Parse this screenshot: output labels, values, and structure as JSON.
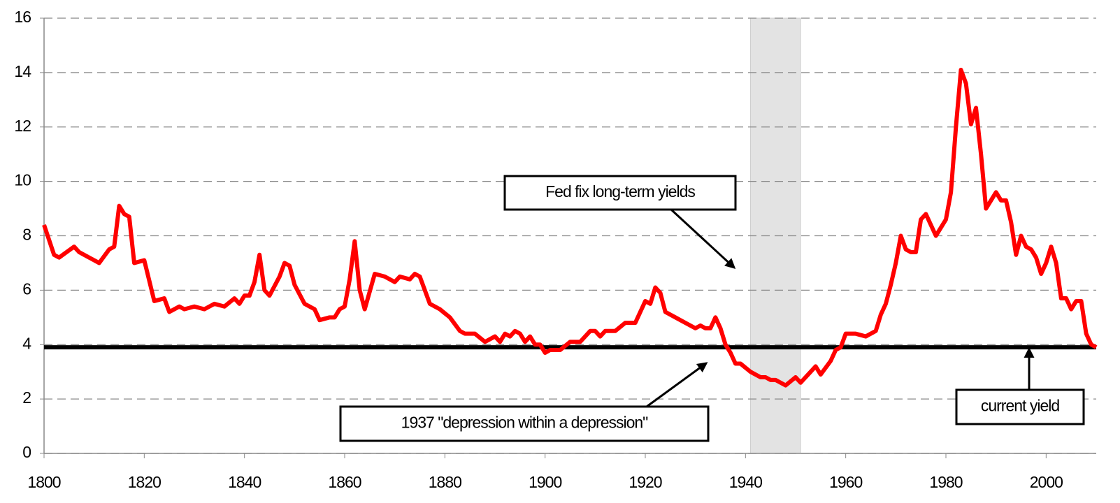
{
  "chart_data": {
    "type": "line",
    "x": [
      1800,
      1802,
      1803,
      1806,
      1807,
      1811,
      1813,
      1814,
      1815,
      1816,
      1817,
      1818,
      1820,
      1822,
      1824,
      1825,
      1827,
      1828,
      1830,
      1832,
      1834,
      1836,
      1838,
      1839,
      1840,
      1841,
      1842,
      1843,
      1844,
      1845,
      1847,
      1848,
      1849,
      1850,
      1852,
      1854,
      1855,
      1857,
      1858,
      1859,
      1860,
      1861,
      1862,
      1863,
      1864,
      1866,
      1868,
      1870,
      1871,
      1873,
      1874,
      1875,
      1877,
      1879,
      1881,
      1883,
      1884,
      1886,
      1888,
      1890,
      1891,
      1892,
      1893,
      1894,
      1895,
      1896,
      1897,
      1898,
      1899,
      1900,
      1901,
      1903,
      1905,
      1907,
      1909,
      1910,
      1911,
      1912,
      1914,
      1916,
      1918,
      1920,
      1921,
      1922,
      1923,
      1924,
      1926,
      1928,
      1930,
      1931,
      1932,
      1933,
      1934,
      1935,
      1936,
      1937,
      1938,
      1939,
      1941,
      1943,
      1944,
      1945,
      1946,
      1948,
      1950,
      1951,
      1953,
      1954,
      1955,
      1957,
      1958,
      1959,
      1960,
      1962,
      1964,
      1966,
      1967,
      1968,
      1969,
      1970,
      1971,
      1972,
      1973,
      1974,
      1975,
      1976,
      1978,
      1980,
      1981,
      1982,
      1983,
      1984,
      1985,
      1986,
      1987,
      1988,
      1989,
      1990,
      1991,
      1992,
      1993,
      1994,
      1995,
      1996,
      1997,
      1998,
      1999,
      2000,
      2001,
      2002,
      2003,
      2004,
      2005,
      2006,
      2007,
      2008,
      2009,
      2010
    ],
    "series": [
      {
        "color": "#ff0000",
        "values": [
          8.4,
          7.3,
          7.2,
          7.6,
          7.4,
          7.0,
          7.5,
          7.6,
          9.1,
          8.8,
          8.7,
          7.0,
          7.1,
          5.6,
          5.7,
          5.2,
          5.4,
          5.3,
          5.4,
          5.3,
          5.5,
          5.4,
          5.7,
          5.5,
          5.8,
          5.8,
          6.3,
          7.3,
          6.0,
          5.8,
          6.5,
          7.0,
          6.9,
          6.2,
          5.5,
          5.3,
          4.9,
          5.0,
          5.0,
          5.3,
          5.4,
          6.4,
          7.8,
          6.0,
          5.3,
          6.6,
          6.5,
          6.3,
          6.5,
          6.4,
          6.6,
          6.5,
          5.5,
          5.3,
          5.0,
          4.5,
          4.4,
          4.4,
          4.1,
          4.3,
          4.1,
          4.4,
          4.3,
          4.5,
          4.4,
          4.1,
          4.3,
          4.0,
          4.0,
          3.7,
          3.8,
          3.8,
          4.1,
          4.1,
          4.5,
          4.5,
          4.3,
          4.5,
          4.5,
          4.8,
          4.8,
          5.6,
          5.5,
          6.1,
          5.9,
          5.2,
          5.0,
          4.8,
          4.6,
          4.7,
          4.6,
          4.6,
          5.0,
          4.6,
          4.0,
          3.7,
          3.3,
          3.3,
          3.0,
          2.8,
          2.8,
          2.7,
          2.7,
          2.5,
          2.8,
          2.6,
          3.0,
          3.2,
          2.9,
          3.4,
          3.8,
          3.9,
          4.4,
          4.4,
          4.3,
          4.5,
          5.1,
          5.5,
          6.2,
          7.0,
          8.0,
          7.5,
          7.4,
          7.4,
          8.6,
          8.8,
          8.0,
          8.6,
          9.6,
          12.0,
          14.1,
          13.6,
          12.1,
          12.7,
          11.0,
          9.0,
          9.3,
          9.6,
          9.3,
          9.3,
          8.5,
          7.3,
          8.0,
          7.6,
          7.5,
          7.2,
          6.6,
          7.0,
          7.6,
          7.0,
          5.7,
          5.7,
          5.3,
          5.6,
          5.6,
          4.4,
          4.0,
          3.9
        ]
      }
    ],
    "reference_line": {
      "value": 3.9,
      "color": "#000000"
    },
    "shaded_span": [
      1941,
      1951
    ],
    "xlim": [
      1800,
      2010
    ],
    "xticks": [
      1800,
      1820,
      1840,
      1860,
      1880,
      1900,
      1920,
      1940,
      1960,
      1980,
      2000
    ],
    "ylim": [
      0,
      16
    ],
    "yticks": [
      0,
      2,
      4,
      6,
      8,
      10,
      12,
      14,
      16
    ],
    "grid": true,
    "annotations": [
      "Fed fix long-term yields",
      "1937 \"depression within a depression\"",
      "current yield"
    ]
  }
}
